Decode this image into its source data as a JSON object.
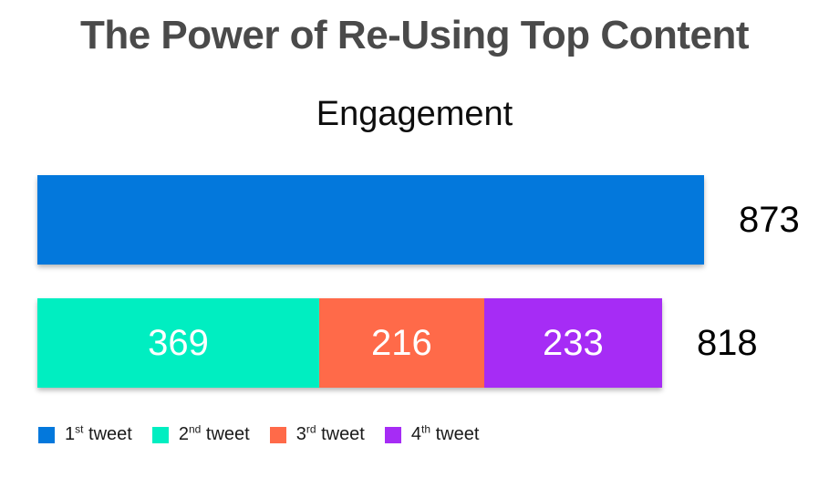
{
  "page": {
    "background_color": "#ffffff"
  },
  "chart_data": {
    "type": "bar",
    "orientation": "horizontal",
    "stacked": true,
    "grid": false,
    "axes_visible": false,
    "title": "The Power of Re-Using Top Content",
    "subtitle": "Engagement",
    "title_color": "#4a4a4a",
    "text_color": "#000000",
    "xmax": 873,
    "rows": [
      {
        "name": "bar-1st-tweet",
        "total": 873,
        "total_label": "873",
        "segments": [
          {
            "series": "1st tweet",
            "value": 873,
            "color": "#0378dc",
            "show_value_label": false,
            "value_label": ""
          }
        ]
      },
      {
        "name": "bar-reused-tweets",
        "total": 818,
        "total_label": "818",
        "segments": [
          {
            "series": "2nd tweet",
            "value": 369,
            "color": "#00eec1",
            "show_value_label": true,
            "value_label": "369",
            "label_color": "#ffffff"
          },
          {
            "series": "3rd tweet",
            "value": 216,
            "color": "#ff6a49",
            "show_value_label": true,
            "value_label": "216",
            "label_color": "#ffffff"
          },
          {
            "series": "4th tweet",
            "value": 233,
            "color": "#a62cf5",
            "show_value_label": true,
            "value_label": "233",
            "label_color": "#ffffff"
          }
        ]
      }
    ],
    "legend": {
      "position": "bottom-left",
      "items": [
        {
          "number": "1",
          "ordinal": "st",
          "word": "tweet",
          "color": "#0378dc"
        },
        {
          "number": "2",
          "ordinal": "nd",
          "word": "tweet",
          "color": "#00eec1"
        },
        {
          "number": "3",
          "ordinal": "rd",
          "word": "tweet",
          "color": "#ff6a49"
        },
        {
          "number": "4",
          "ordinal": "th",
          "word": "tweet",
          "color": "#a62cf5"
        }
      ]
    }
  }
}
